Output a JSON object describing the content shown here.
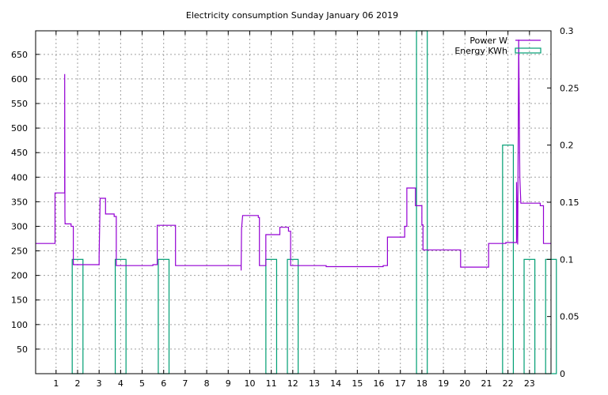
{
  "chart_data": {
    "type": "line",
    "title": "Electricity consumption Sunday January 06 2019",
    "xlabel": "",
    "ylabel": "",
    "x_ticks": [
      1,
      2,
      3,
      4,
      5,
      6,
      7,
      8,
      9,
      10,
      11,
      12,
      13,
      14,
      15,
      16,
      17,
      18,
      19,
      20,
      21,
      22,
      23
    ],
    "xlim": [
      0.05,
      24.0
    ],
    "y_ticks": [
      50,
      100,
      150,
      200,
      250,
      300,
      350,
      400,
      450,
      500,
      550,
      600,
      650
    ],
    "ylim": [
      0,
      698
    ],
    "y2_ticks": [
      "0",
      "0.05",
      "0.1",
      "0.15",
      "0.2",
      "0.25",
      "0.3"
    ],
    "y2lim": [
      0,
      0.3
    ],
    "grid": true,
    "legend_position": "top-right",
    "colors": {
      "power": "#9400d3",
      "energy": "#009e73"
    },
    "series": [
      {
        "name": "Power W",
        "type": "line",
        "axis": "y",
        "points": [
          [
            0.05,
            265
          ],
          [
            0.95,
            265
          ],
          [
            0.95,
            368
          ],
          [
            1.4,
            368
          ],
          [
            1.4,
            610
          ],
          [
            1.41,
            320
          ],
          [
            1.42,
            305
          ],
          [
            1.7,
            305
          ],
          [
            1.7,
            300
          ],
          [
            1.8,
            300
          ],
          [
            1.8,
            222
          ],
          [
            3.0,
            222
          ],
          [
            3.0,
            240
          ],
          [
            3.05,
            357
          ],
          [
            3.3,
            357
          ],
          [
            3.3,
            325
          ],
          [
            3.7,
            325
          ],
          [
            3.7,
            320
          ],
          [
            3.8,
            320
          ],
          [
            3.8,
            220
          ],
          [
            5.5,
            220
          ],
          [
            5.5,
            222
          ],
          [
            5.7,
            222
          ],
          [
            5.7,
            302
          ],
          [
            6.55,
            302
          ],
          [
            6.55,
            220
          ],
          [
            9.6,
            220
          ],
          [
            9.6,
            210
          ],
          [
            9.62,
            295
          ],
          [
            9.67,
            322
          ],
          [
            10.4,
            322
          ],
          [
            10.4,
            318
          ],
          [
            10.45,
            318
          ],
          [
            10.45,
            220
          ],
          [
            10.75,
            220
          ],
          [
            10.75,
            283
          ],
          [
            11.4,
            283
          ],
          [
            11.4,
            298
          ],
          [
            11.8,
            298
          ],
          [
            11.8,
            290
          ],
          [
            11.9,
            290
          ],
          [
            11.9,
            220
          ],
          [
            13.55,
            220
          ],
          [
            13.55,
            218
          ],
          [
            16.2,
            218
          ],
          [
            16.2,
            220
          ],
          [
            16.4,
            220
          ],
          [
            16.4,
            278
          ],
          [
            17.2,
            278
          ],
          [
            17.2,
            300
          ],
          [
            17.3,
            300
          ],
          [
            17.3,
            378
          ],
          [
            17.7,
            378
          ],
          [
            17.7,
            342
          ],
          [
            18.0,
            342
          ],
          [
            18.0,
            303
          ],
          [
            18.05,
            303
          ],
          [
            18.05,
            252
          ],
          [
            19.8,
            252
          ],
          [
            19.8,
            217
          ],
          [
            21.1,
            217
          ],
          [
            21.1,
            265
          ],
          [
            21.9,
            265
          ],
          [
            21.9,
            267
          ],
          [
            22.4,
            267
          ],
          [
            22.4,
            390
          ],
          [
            22.45,
            263
          ],
          [
            22.5,
            680
          ],
          [
            22.55,
            400
          ],
          [
            22.6,
            347
          ],
          [
            23.5,
            347
          ],
          [
            23.5,
            342
          ],
          [
            23.65,
            342
          ],
          [
            23.65,
            265
          ],
          [
            24.0,
            265
          ]
        ]
      },
      {
        "name": "Energy KWh",
        "type": "bar",
        "axis": "y2",
        "hours": [
          0,
          1,
          2,
          3,
          4,
          5,
          6,
          7,
          8,
          9,
          10,
          11,
          12,
          13,
          14,
          15,
          16,
          17,
          18,
          19,
          20,
          21,
          22,
          23
        ],
        "values": [
          0,
          0.1,
          0,
          0.1,
          0,
          0.1,
          0,
          0,
          0,
          0,
          0.1,
          0.1,
          0,
          0,
          0,
          0,
          0,
          0.3,
          0,
          0,
          0,
          0.2,
          0.1,
          0.1
        ]
      }
    ]
  }
}
